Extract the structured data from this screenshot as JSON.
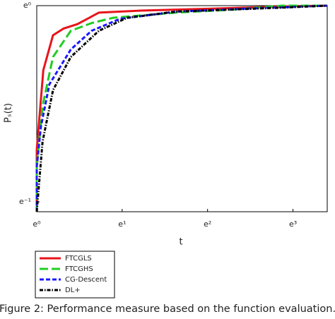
{
  "chart_data": {
    "type": "line",
    "xlabel": "t",
    "ylabel": "Pₛ(t)",
    "caption": "Figure 2: Performance measure based on the function evaluation.",
    "xscale": "log",
    "yscale": "log",
    "xlim": [
      1,
      30
    ],
    "ylim": [
      0.35,
      1
    ],
    "xticks": [
      {
        "value": 1,
        "label": "e⁰"
      },
      {
        "value": 2.718,
        "label": "e¹"
      },
      {
        "value": 7.389,
        "label": "e²"
      },
      {
        "value": 20.09,
        "label": "e³"
      }
    ],
    "yticks": [
      {
        "value": 0.368,
        "label": "e⁻¹"
      },
      {
        "value": 1,
        "label": "e⁰"
      }
    ],
    "legend": "below-left",
    "series": [
      {
        "name": "FTCGLS",
        "color": "#e8141b",
        "linestyle": "solid",
        "x": [
          1,
          1,
          1.08,
          1.21,
          1.37,
          1.61,
          2.07,
          3.4,
          7.8,
          17.7,
          30
        ],
        "y": [
          0.35,
          0.48,
          0.72,
          0.86,
          0.89,
          0.91,
          0.965,
          0.975,
          0.985,
          0.996,
          1
        ]
      },
      {
        "name": "FTCGHS",
        "color": "#22cc22",
        "linestyle": "longdash",
        "x": [
          1,
          1,
          1.07,
          1.21,
          1.49,
          1.9,
          2.44,
          5.1,
          10,
          17.7,
          30
        ],
        "y": [
          0.35,
          0.44,
          0.6,
          0.77,
          0.88,
          0.915,
          0.94,
          0.965,
          0.98,
          1,
          1
        ]
      },
      {
        "name": "CG-Descent",
        "color": "#1a1aff",
        "linestyle": "dash",
        "x": [
          1,
          1,
          1.05,
          1.16,
          1.49,
          1.9,
          2.65,
          5.1,
          11.7,
          30
        ],
        "y": [
          0.35,
          0.44,
          0.54,
          0.67,
          0.8,
          0.88,
          0.935,
          0.97,
          0.985,
          1
        ]
      },
      {
        "name": "DL+",
        "color": "#000000",
        "linestyle": "dashdot",
        "x": [
          1,
          1.07,
          1.21,
          1.49,
          2.07,
          2.88,
          5.1,
          17.7,
          30
        ],
        "y": [
          0.35,
          0.5,
          0.65,
          0.77,
          0.88,
          0.94,
          0.97,
          0.99,
          1
        ]
      }
    ]
  }
}
